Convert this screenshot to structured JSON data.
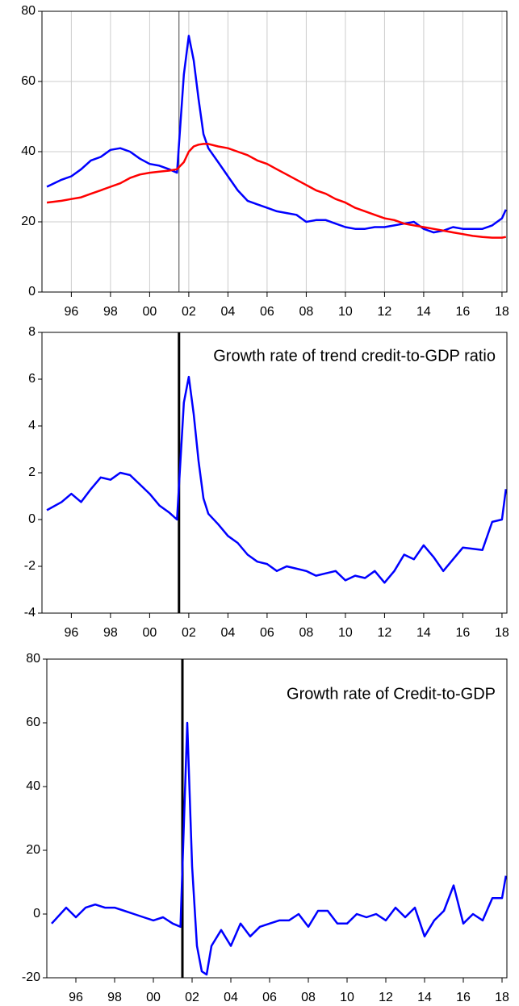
{
  "chart_data": [
    {
      "type": "line",
      "grid": true,
      "vline": 2001.5,
      "x": [
        1994.75,
        1995.5,
        1996,
        1996.5,
        1997,
        1997.5,
        1998,
        1998.5,
        1999,
        1999.5,
        2000,
        2000.5,
        2001,
        2001.4,
        2001.75,
        2002,
        2002.25,
        2002.5,
        2002.75,
        2003,
        2003.5,
        2004,
        2004.5,
        2005,
        2005.5,
        2006,
        2006.5,
        2007,
        2007.5,
        2008,
        2008.5,
        2009,
        2009.5,
        2010,
        2010.5,
        2011,
        2011.5,
        2012,
        2012.5,
        2013,
        2013.5,
        2014,
        2014.5,
        2015,
        2015.5,
        2016,
        2016.5,
        2017,
        2017.5,
        2018,
        2018.2
      ],
      "series": [
        {
          "color": "#0000ff",
          "values": [
            30,
            32,
            33,
            35,
            37.5,
            38.5,
            40.5,
            41,
            40,
            38,
            36.5,
            36,
            35,
            34,
            62,
            73,
            66,
            55,
            45,
            41,
            37,
            33,
            29,
            26,
            25,
            24,
            23,
            22.5,
            22,
            20,
            20.5,
            20.5,
            19.5,
            18.5,
            18,
            18,
            18.5,
            18.5,
            19,
            19.5,
            20,
            18,
            17,
            17.5,
            18.5,
            18,
            18,
            18,
            19,
            21,
            23.5
          ]
        },
        {
          "color": "#ff0000",
          "values": [
            25.5,
            26,
            26.5,
            27,
            28,
            29,
            30,
            31,
            32.5,
            33.5,
            34,
            34.3,
            34.6,
            35,
            37,
            40,
            41.5,
            42,
            42.2,
            42.2,
            41.5,
            41,
            40,
            39,
            37.5,
            36.5,
            35,
            33.5,
            32,
            30.5,
            29,
            28,
            26.5,
            25.5,
            24,
            23,
            22,
            21,
            20.5,
            19.5,
            19,
            18.5,
            18,
            17.5,
            17,
            16.5,
            16,
            15.7,
            15.5,
            15.5,
            15.7
          ]
        }
      ],
      "xlim": [
        1994.5,
        2018.25
      ],
      "xticks": [
        {
          "value": 1996,
          "label": "96"
        },
        {
          "value": 1998,
          "label": "98"
        },
        {
          "value": 2000,
          "label": "00"
        },
        {
          "value": 2002,
          "label": "02"
        },
        {
          "value": 2004,
          "label": "04"
        },
        {
          "value": 2006,
          "label": "06"
        },
        {
          "value": 2008,
          "label": "08"
        },
        {
          "value": 2010,
          "label": "10"
        },
        {
          "value": 2012,
          "label": "12"
        },
        {
          "value": 2014,
          "label": "14"
        },
        {
          "value": 2016,
          "label": "16"
        },
        {
          "value": 2018,
          "label": "18"
        }
      ],
      "ylim": [
        0,
        80
      ],
      "yticks": [
        0,
        20,
        40,
        60,
        80
      ]
    },
    {
      "type": "line",
      "grid": false,
      "vline": 2001.5,
      "annotation": "Growth rate of trend credit-to-GDP ratio",
      "x": [
        1994.75,
        1995.5,
        1996,
        1996.5,
        1997,
        1997.5,
        1998,
        1998.5,
        1999,
        1999.5,
        2000,
        2000.5,
        2001,
        2001.4,
        2001.75,
        2002,
        2002.25,
        2002.5,
        2002.75,
        2003,
        2003.5,
        2004,
        2004.5,
        2005,
        2005.5,
        2006,
        2006.5,
        2007,
        2007.5,
        2008,
        2008.5,
        2009,
        2009.5,
        2010,
        2010.5,
        2011,
        2011.5,
        2012,
        2012.5,
        2013,
        2013.5,
        2014,
        2014.5,
        2015,
        2015.5,
        2016,
        2016.5,
        2017,
        2017.5,
        2018,
        2018.2
      ],
      "series": [
        {
          "color": "#0000ff",
          "values": [
            0.4,
            0.75,
            1.1,
            0.75,
            1.3,
            1.8,
            1.7,
            2.0,
            1.9,
            1.5,
            1.1,
            0.6,
            0.3,
            0.0,
            5.0,
            6.1,
            4.5,
            2.5,
            0.9,
            0.25,
            -0.2,
            -0.7,
            -1.0,
            -1.5,
            -1.8,
            -1.9,
            -2.2,
            -2.0,
            -2.1,
            -2.2,
            -2.4,
            -2.3,
            -2.2,
            -2.6,
            -2.4,
            -2.5,
            -2.2,
            -2.7,
            -2.2,
            -1.5,
            -1.7,
            -1.1,
            -1.6,
            -2.2,
            -1.7,
            -1.2,
            -1.25,
            -1.3,
            -0.1,
            0.0,
            1.3
          ]
        }
      ],
      "xlim": [
        1994.5,
        2018.25
      ],
      "xticks": [
        {
          "value": 1996,
          "label": "96"
        },
        {
          "value": 1998,
          "label": "98"
        },
        {
          "value": 2000,
          "label": "00"
        },
        {
          "value": 2002,
          "label": "02"
        },
        {
          "value": 2004,
          "label": "04"
        },
        {
          "value": 2006,
          "label": "06"
        },
        {
          "value": 2008,
          "label": "08"
        },
        {
          "value": 2010,
          "label": "10"
        },
        {
          "value": 2012,
          "label": "12"
        },
        {
          "value": 2014,
          "label": "14"
        },
        {
          "value": 2016,
          "label": "16"
        },
        {
          "value": 2018,
          "label": "18"
        }
      ],
      "ylim": [
        -4,
        8
      ],
      "yticks": [
        -4,
        -2,
        0,
        2,
        4,
        6,
        8
      ]
    },
    {
      "type": "line",
      "grid": false,
      "vline": 2001.5,
      "annotation": "Growth rate of Credit-to-GDP",
      "x": [
        1994.75,
        1995.5,
        1996,
        1996.5,
        1997,
        1997.5,
        1998,
        1998.5,
        1999,
        1999.5,
        2000,
        2000.5,
        2001,
        2001.4,
        2001.75,
        2002,
        2002.25,
        2002.5,
        2002.75,
        2003,
        2003.5,
        2004,
        2004.5,
        2005,
        2005.5,
        2006,
        2006.5,
        2007,
        2007.5,
        2008,
        2008.5,
        2009,
        2009.5,
        2010,
        2010.5,
        2011,
        2011.5,
        2012,
        2012.5,
        2013,
        2013.5,
        2014,
        2014.5,
        2015,
        2015.5,
        2016,
        2016.5,
        2017,
        2017.5,
        2018,
        2018.2
      ],
      "series": [
        {
          "color": "#0000ff",
          "values": [
            -3,
            2,
            -1,
            2,
            3,
            2,
            2,
            1,
            0,
            -1,
            -2,
            -1,
            -3,
            -4,
            60,
            15,
            -10,
            -18,
            -19,
            -10,
            -5,
            -10,
            -3,
            -7,
            -4,
            -3,
            -2,
            -2,
            0,
            -4,
            1,
            1,
            -3,
            -3,
            0,
            -1,
            0,
            -2,
            2,
            -1,
            2,
            -7,
            -2,
            1,
            9,
            -3,
            0,
            -2,
            5,
            5,
            12
          ]
        }
      ],
      "xlim": [
        1994.5,
        2018.25
      ],
      "xticks": [
        {
          "value": 1996,
          "label": "96"
        },
        {
          "value": 1998,
          "label": "98"
        },
        {
          "value": 2000,
          "label": "00"
        },
        {
          "value": 2002,
          "label": "02"
        },
        {
          "value": 2004,
          "label": "04"
        },
        {
          "value": 2006,
          "label": "06"
        },
        {
          "value": 2008,
          "label": "08"
        },
        {
          "value": 2010,
          "label": "10"
        },
        {
          "value": 2012,
          "label": "12"
        },
        {
          "value": 2014,
          "label": "14"
        },
        {
          "value": 2016,
          "label": "16"
        },
        {
          "value": 2018,
          "label": "18"
        }
      ],
      "ylim": [
        -20,
        80
      ],
      "yticks": [
        -20,
        0,
        20,
        40,
        60,
        80
      ]
    }
  ]
}
